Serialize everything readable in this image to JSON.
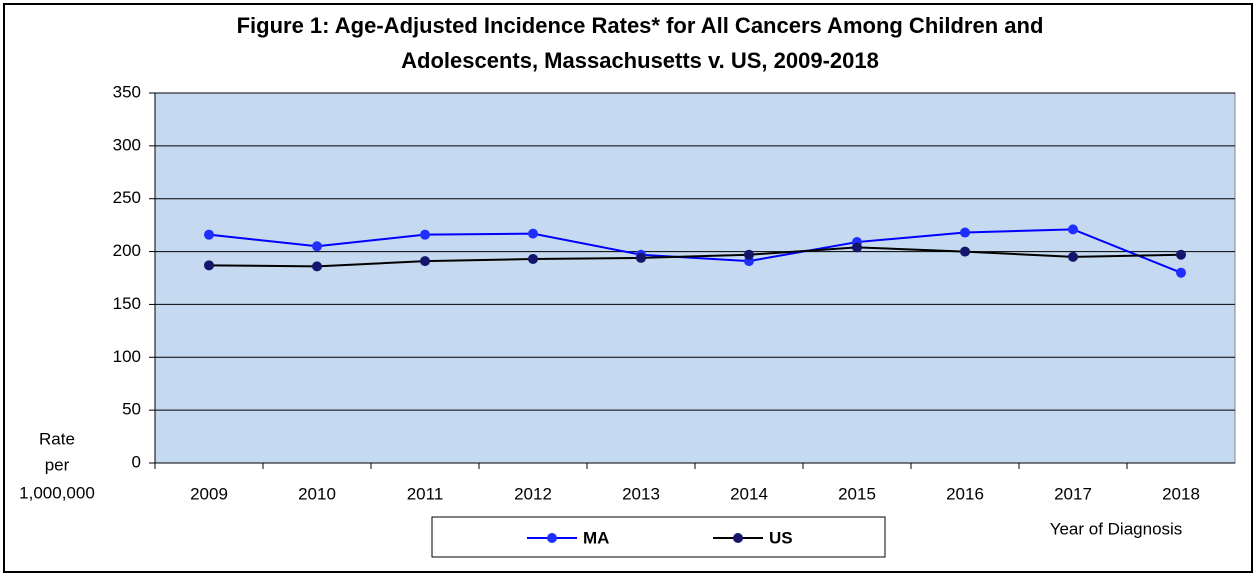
{
  "chart_data": {
    "type": "line",
    "title": [
      "Figure 1: Age-Adjusted Incidence Rates* for All Cancers Among Children and",
      "Adolescents, Massachusetts v. US, 2009-2018"
    ],
    "ylabel": [
      "Rate",
      "per",
      "1,000,000"
    ],
    "xlabel": "Year of Diagnosis",
    "categories": [
      "2009",
      "2010",
      "2011",
      "2012",
      "2013",
      "2014",
      "2015",
      "2016",
      "2017",
      "2018"
    ],
    "series": [
      {
        "name": "MA",
        "color": "#0000ff",
        "marker_color": "#1f2fff",
        "values": [
          216,
          205,
          216,
          217,
          197,
          191,
          209,
          218,
          221,
          180
        ]
      },
      {
        "name": "US",
        "color": "#000000",
        "marker_color": "#15156b",
        "values": [
          187,
          186,
          191,
          193,
          194,
          197,
          204,
          200,
          195,
          197
        ]
      }
    ],
    "ylim": [
      0,
      350
    ],
    "yticks": [
      0,
      50,
      100,
      150,
      200,
      250,
      300,
      350
    ],
    "grid": true,
    "plot_background": "#c5d9f1",
    "legend": "bottom"
  }
}
